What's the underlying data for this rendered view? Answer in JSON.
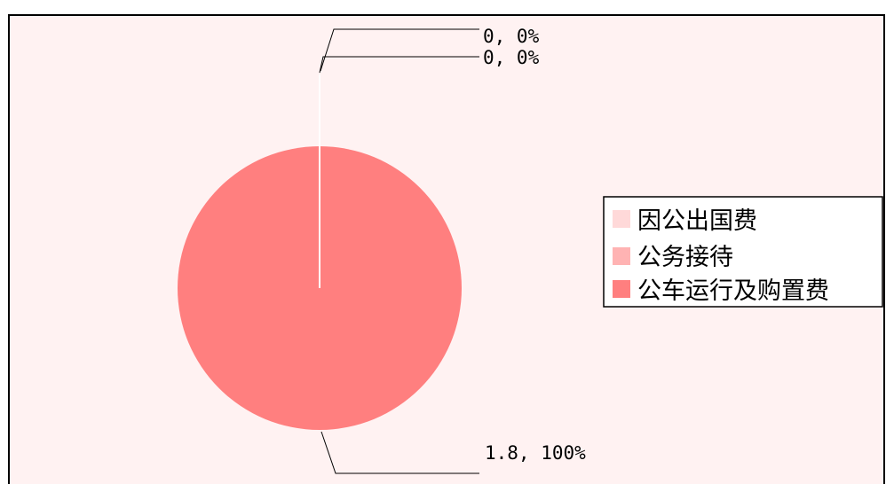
{
  "chart_data": {
    "type": "pie",
    "title": "",
    "slices": [
      {
        "name": "因公出国费",
        "value": 0,
        "percent": "0%",
        "label": "0, 0%",
        "color": "#FFD9D9"
      },
      {
        "name": "公务接待",
        "value": 0,
        "percent": "0%",
        "label": "0, 0%",
        "color": "#FFB3B3"
      },
      {
        "name": "公车运行及购置费",
        "value": 1.8,
        "percent": "100%",
        "label": "1.8, 100%",
        "color": "#FF7F7F"
      }
    ],
    "legend_position": "right",
    "background_color": "#FFF2F2",
    "border_color": "#000000"
  }
}
